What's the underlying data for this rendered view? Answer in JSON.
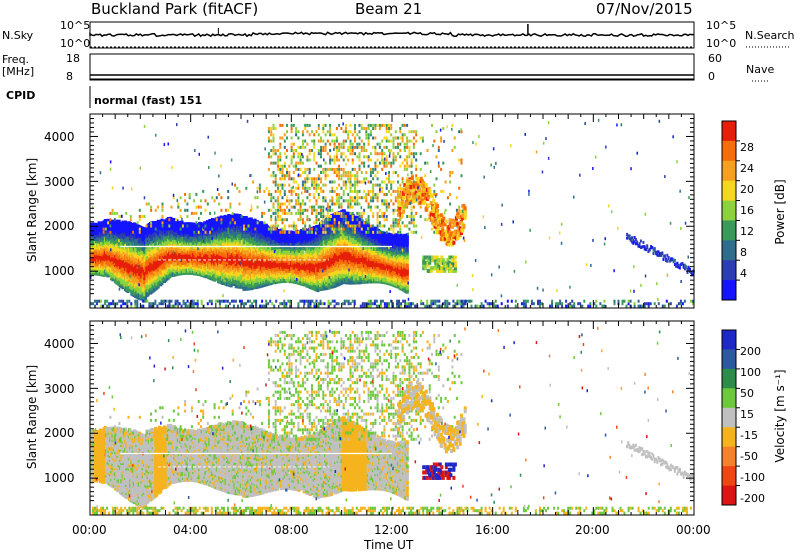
{
  "header": {
    "station": "Buckland Park (fitACF)",
    "beam": "Beam 21",
    "date": "07/Nov/2015"
  },
  "status_panel": {
    "nsky_label": "N.Sky",
    "nsky_ticks": [
      "10^5",
      "10^0"
    ],
    "nsearch_label": "N.Search",
    "nsearch_ticks": [
      "10^5",
      "10^0"
    ],
    "freq_label": "Freq.",
    "freq_unit": "[MHz]",
    "freq_ticks": [
      "18",
      "8"
    ],
    "nave_label": "Nave",
    "nave_ticks": [
      "60",
      "0"
    ],
    "cpid_label": "CPID",
    "cpid_value": "normal (fast) 151"
  },
  "chart_data": [
    {
      "type": "heatmap",
      "name": "power-panel",
      "ylabel": "Slant Range [km]",
      "y_ticks": [
        "1000",
        "2000",
        "3000",
        "4000"
      ],
      "ylim": [
        180,
        4500
      ],
      "xlim_hours": [
        0,
        24
      ],
      "colorbar": {
        "label": "Power [dB]",
        "ticks": [
          "4",
          "8",
          "12",
          "16",
          "20",
          "24",
          "28"
        ],
        "range": [
          0,
          32
        ],
        "colors": [
          "#1414ff",
          "#2c3cb4",
          "#2e6e8c",
          "#3a9a5a",
          "#8cd23c",
          "#f5d71e",
          "#f5a01e",
          "#f56e0a",
          "#e61e0a"
        ]
      }
    },
    {
      "type": "heatmap",
      "name": "velocity-panel",
      "ylabel": "Slant Range [km]",
      "y_ticks": [
        "1000",
        "2000",
        "3000",
        "4000"
      ],
      "ylim": [
        180,
        4500
      ],
      "xlim_hours": [
        0,
        24
      ],
      "x_ticks": [
        "00:00",
        "04:00",
        "08:00",
        "12:00",
        "16:00",
        "20:00",
        "00:00"
      ],
      "xlabel": "Time UT",
      "colorbar": {
        "label": "Velocity [m s⁻¹]",
        "ticks": [
          "200",
          "100",
          "50",
          "15",
          "-15",
          "-50",
          "-100",
          "-200"
        ],
        "colors": [
          "#1e28c8",
          "#2c5aa0",
          "#2e8c4a",
          "#6cc83c",
          "#c0c0c0",
          "#f5b41e",
          "#f5822a",
          "#f04614",
          "#dc1414"
        ]
      }
    }
  ]
}
